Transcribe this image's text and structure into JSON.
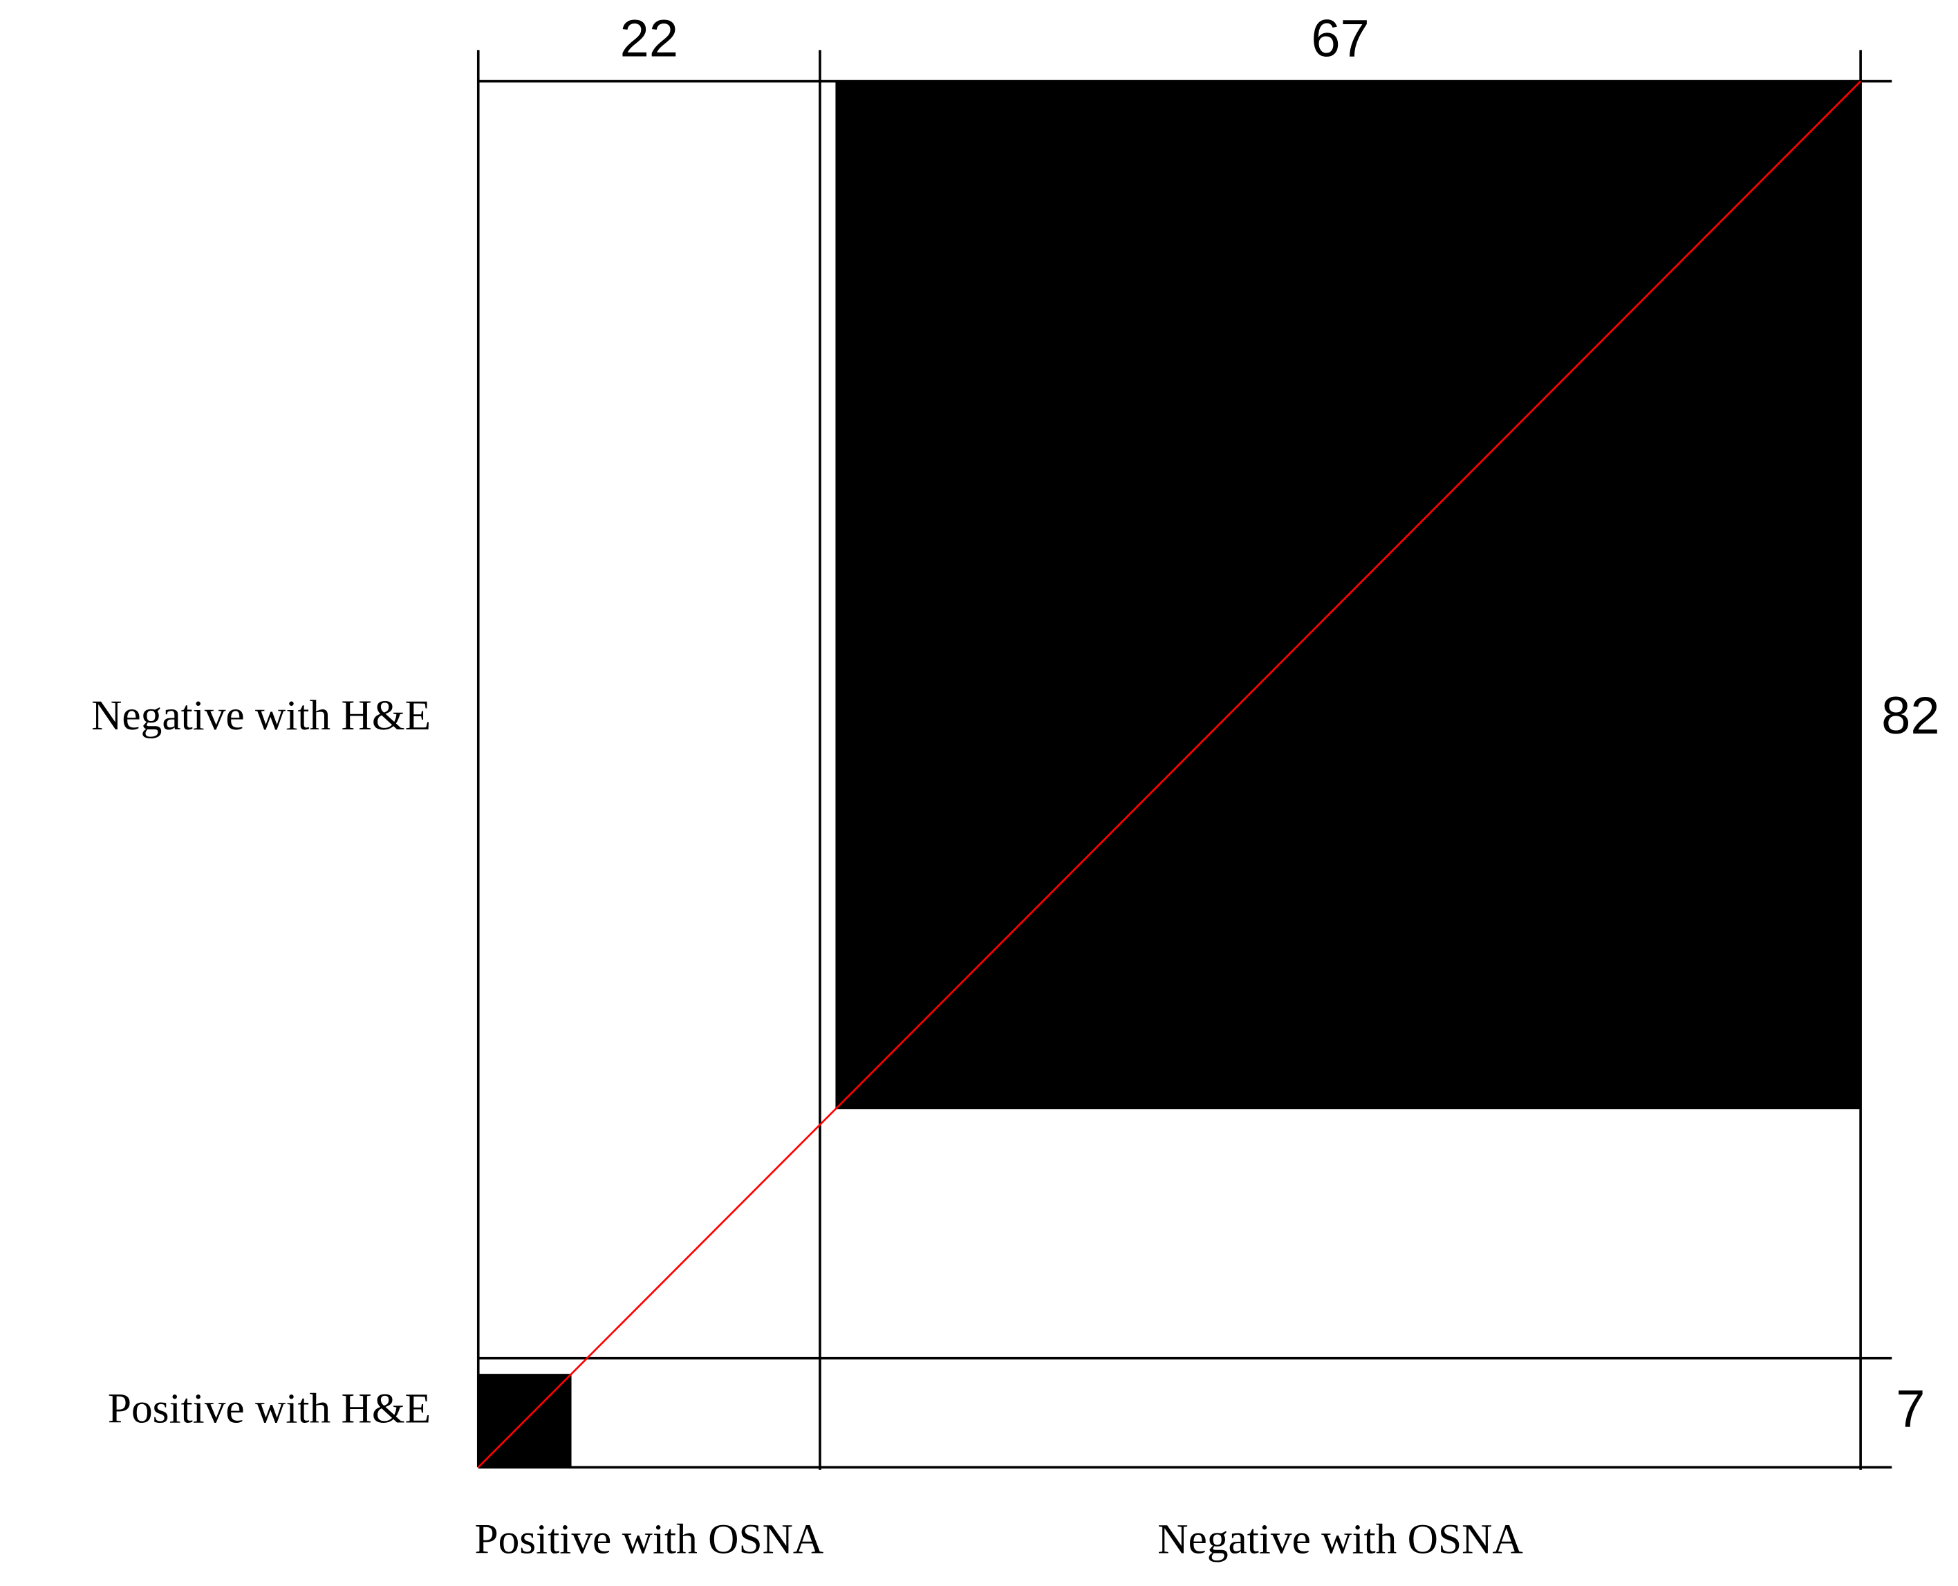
{
  "chart_data": {
    "type": "agreement",
    "x_categories": [
      "Positive with OSNA",
      "Negative with OSNA"
    ],
    "y_categories": [
      "Positive with H&E",
      "Negative with H&E"
    ],
    "column_totals": [
      22,
      67
    ],
    "row_totals": [
      7,
      82
    ],
    "agreement": [
      6,
      66
    ],
    "box_color": "#000000",
    "diagonal_color": "#ff0000"
  }
}
